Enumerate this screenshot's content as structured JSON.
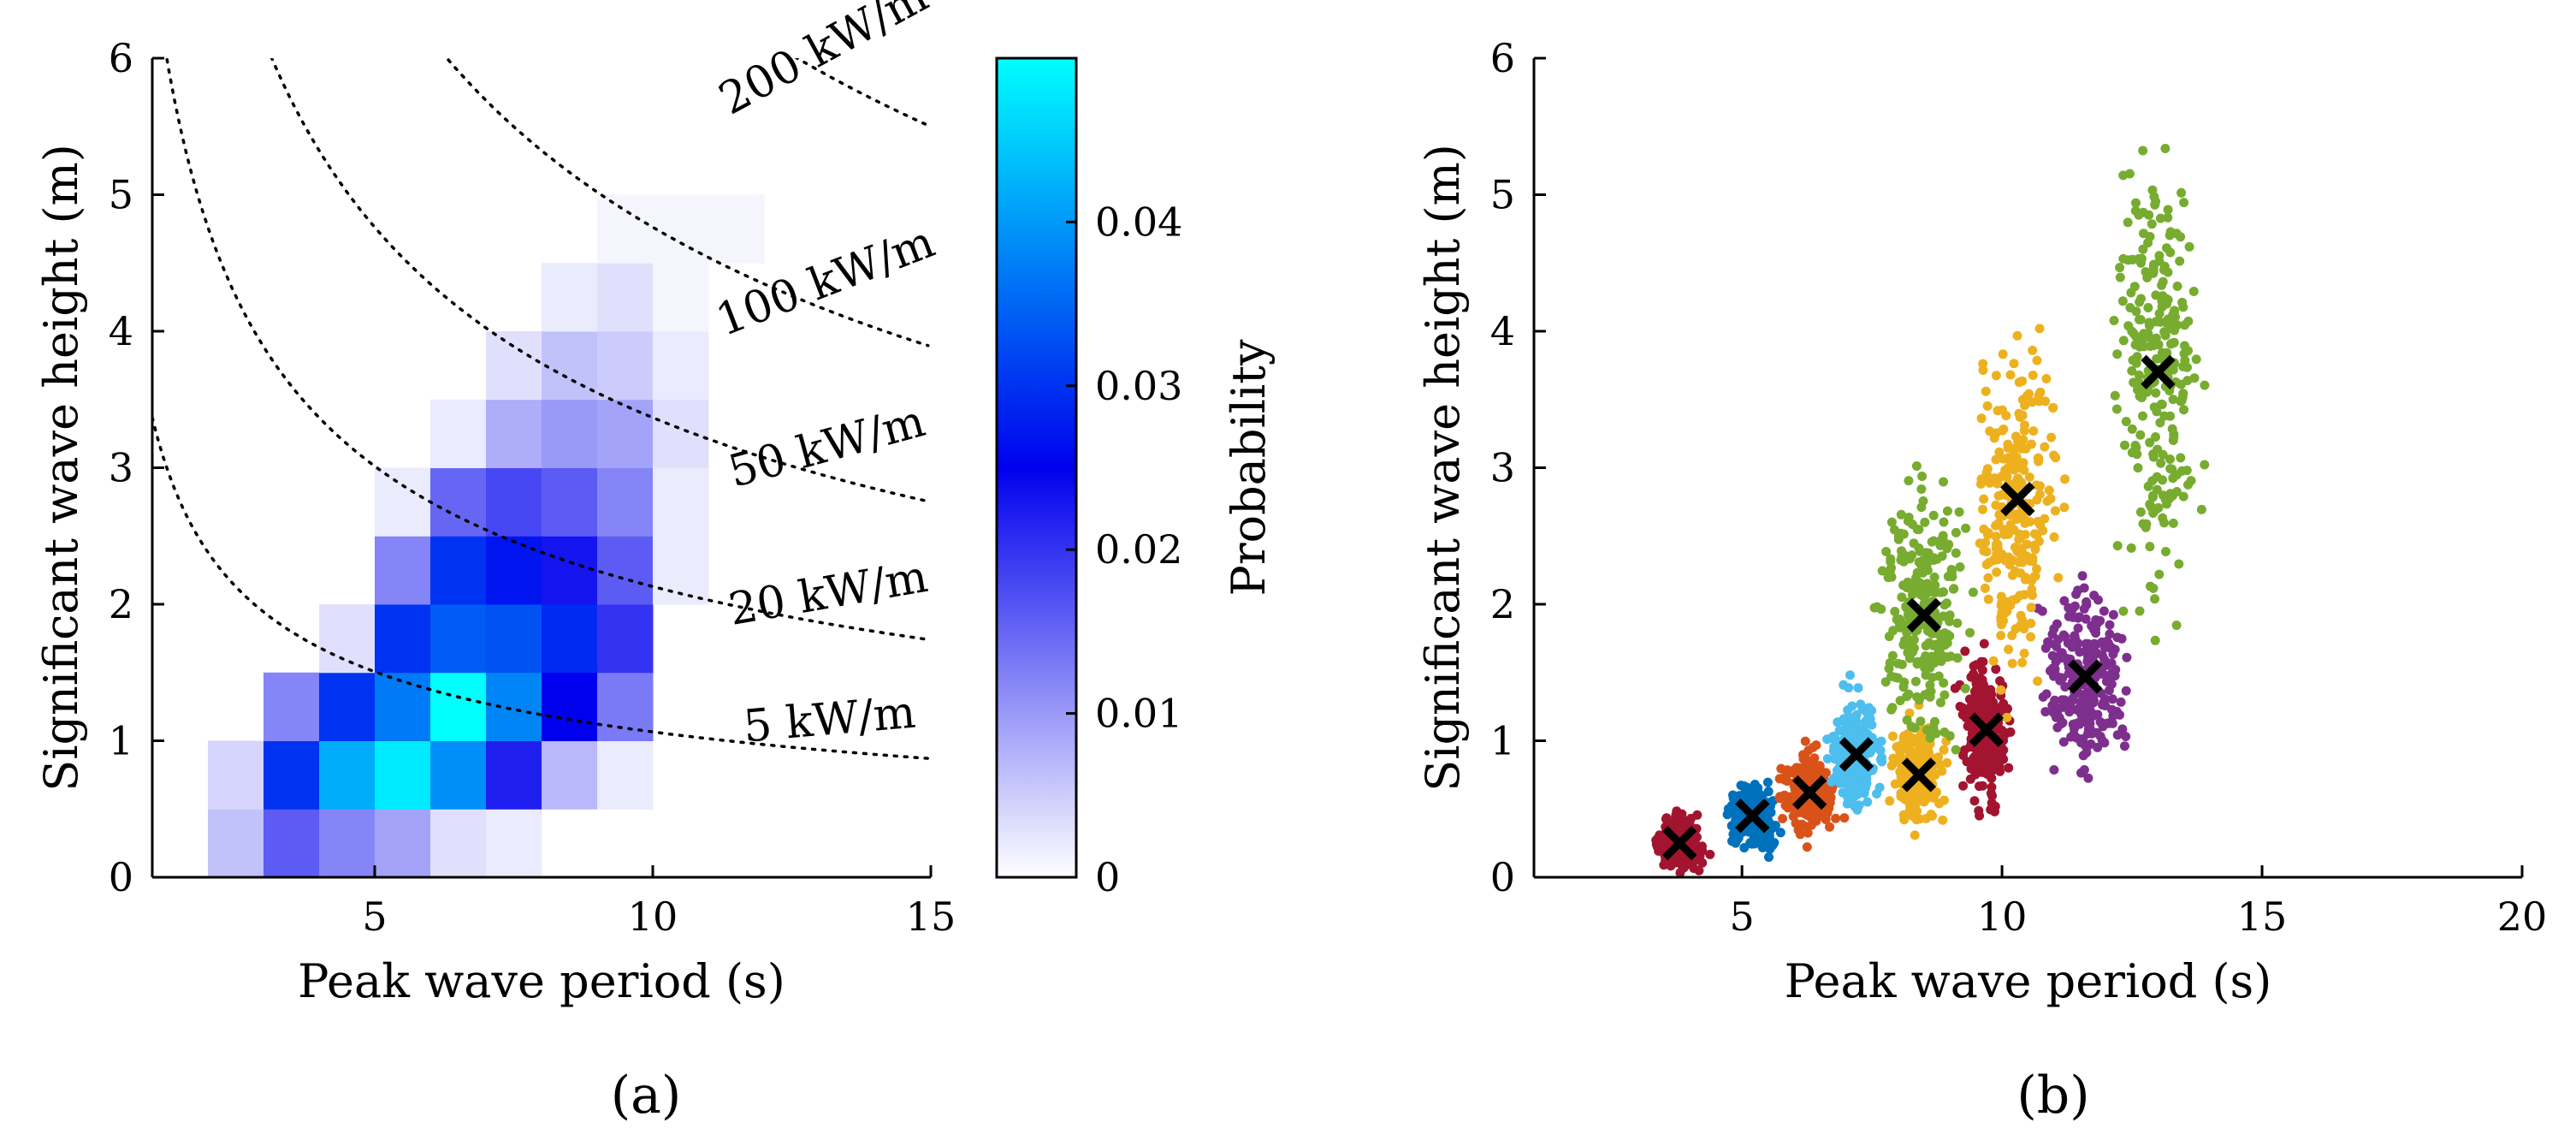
{
  "chart_data": [
    {
      "panel_label": "(a)",
      "type": "heatmap",
      "xlabel": "Peak wave period (s)",
      "ylabel": "Significant wave height (m)",
      "xlim": [
        1,
        15
      ],
      "ylim": [
        0,
        6
      ],
      "xticks": [
        "5",
        "10",
        "15"
      ],
      "yticks": [
        "0",
        "1",
        "2",
        "3",
        "4",
        "5",
        "6"
      ],
      "colorbar": {
        "label": "Probability",
        "range": [
          0,
          0.05
        ],
        "ticks": [
          "0",
          "0.01",
          "0.02",
          "0.03",
          "0.04"
        ],
        "colors": [
          "#ffffff",
          "#0000ee",
          "#00ffff"
        ]
      },
      "cell_width_s": 1,
      "cell_height_m": 0.5,
      "cells": [
        {
          "t": 2,
          "h": 0,
          "p": 0.006
        },
        {
          "t": 3,
          "h": 0,
          "p": 0.016
        },
        {
          "t": 4,
          "h": 0,
          "p": 0.012
        },
        {
          "t": 5,
          "h": 0,
          "p": 0.009
        },
        {
          "t": 6,
          "h": 0,
          "p": 0.003
        },
        {
          "t": 7,
          "h": 0,
          "p": 0.002
        },
        {
          "t": 2,
          "h": 0.5,
          "p": 0.004
        },
        {
          "t": 3,
          "h": 0.5,
          "p": 0.03
        },
        {
          "t": 4,
          "h": 0.5,
          "p": 0.042
        },
        {
          "t": 5,
          "h": 0.5,
          "p": 0.048
        },
        {
          "t": 6,
          "h": 0.5,
          "p": 0.039
        },
        {
          "t": 7,
          "h": 0.5,
          "p": 0.022
        },
        {
          "t": 8,
          "h": 0.5,
          "p": 0.007
        },
        {
          "t": 9,
          "h": 0.5,
          "p": 0.002
        },
        {
          "t": 3,
          "h": 1,
          "p": 0.012
        },
        {
          "t": 4,
          "h": 1,
          "p": 0.03
        },
        {
          "t": 5,
          "h": 1,
          "p": 0.037
        },
        {
          "t": 6,
          "h": 1,
          "p": 0.05
        },
        {
          "t": 7,
          "h": 1,
          "p": 0.038
        },
        {
          "t": 8,
          "h": 1,
          "p": 0.025
        },
        {
          "t": 9,
          "h": 1,
          "p": 0.013
        },
        {
          "t": 4,
          "h": 1.5,
          "p": 0.003
        },
        {
          "t": 5,
          "h": 1.5,
          "p": 0.03
        },
        {
          "t": 6,
          "h": 1.5,
          "p": 0.034
        },
        {
          "t": 7,
          "h": 1.5,
          "p": 0.033
        },
        {
          "t": 8,
          "h": 1.5,
          "p": 0.029
        },
        {
          "t": 9,
          "h": 1.5,
          "p": 0.02
        },
        {
          "t": 5,
          "h": 2,
          "p": 0.012
        },
        {
          "t": 6,
          "h": 2,
          "p": 0.03
        },
        {
          "t": 7,
          "h": 2,
          "p": 0.027
        },
        {
          "t": 8,
          "h": 2,
          "p": 0.023
        },
        {
          "t": 9,
          "h": 2,
          "p": 0.016
        },
        {
          "t": 10,
          "h": 2,
          "p": 0.002
        },
        {
          "t": 5,
          "h": 2.5,
          "p": 0.002
        },
        {
          "t": 6,
          "h": 2.5,
          "p": 0.015
        },
        {
          "t": 7,
          "h": 2.5,
          "p": 0.018
        },
        {
          "t": 8,
          "h": 2.5,
          "p": 0.016
        },
        {
          "t": 9,
          "h": 2.5,
          "p": 0.012
        },
        {
          "t": 10,
          "h": 2.5,
          "p": 0.002
        },
        {
          "t": 6,
          "h": 3,
          "p": 0.002
        },
        {
          "t": 7,
          "h": 3,
          "p": 0.008
        },
        {
          "t": 8,
          "h": 3,
          "p": 0.01
        },
        {
          "t": 9,
          "h": 3,
          "p": 0.009
        },
        {
          "t": 10,
          "h": 3,
          "p": 0.003
        },
        {
          "t": 7,
          "h": 3.5,
          "p": 0.003
        },
        {
          "t": 8,
          "h": 3.5,
          "p": 0.006
        },
        {
          "t": 9,
          "h": 3.5,
          "p": 0.005
        },
        {
          "t": 10,
          "h": 3.5,
          "p": 0.002
        },
        {
          "t": 8,
          "h": 4,
          "p": 0.002
        },
        {
          "t": 9,
          "h": 4,
          "p": 0.003
        },
        {
          "t": 10,
          "h": 4,
          "p": 0.001
        },
        {
          "t": 9,
          "h": 4.5,
          "p": 0.001
        },
        {
          "t": 10,
          "h": 4.5,
          "p": 0.001
        },
        {
          "t": 11,
          "h": 4.5,
          "p": 0.001
        }
      ],
      "contours": [
        {
          "label": "5 kW/m",
          "power": 5
        },
        {
          "label": "20 kW/m",
          "power": 20
        },
        {
          "label": "50 kW/m",
          "power": 50
        },
        {
          "label": "100 kW/m",
          "power": 100
        },
        {
          "label": "200 kW/m",
          "power": 200
        }
      ]
    },
    {
      "panel_label": "(b)",
      "type": "scatter",
      "xlabel": "Peak wave period (s)",
      "ylabel": "Significant wave height (m)",
      "xlim": [
        1,
        20
      ],
      "ylim": [
        0,
        6
      ],
      "xticks": [
        "5",
        "10",
        "15",
        "20"
      ],
      "yticks": [
        "0",
        "1",
        "2",
        "3",
        "4",
        "5",
        "6"
      ],
      "clusters": [
        {
          "color": "#a2142f",
          "centroid": [
            3.8,
            0.25
          ]
        },
        {
          "color": "#0072bd",
          "centroid": [
            5.2,
            0.45
          ]
        },
        {
          "color": "#d95319",
          "centroid": [
            6.3,
            0.62
          ]
        },
        {
          "color": "#4dbeee",
          "centroid": [
            7.2,
            0.9
          ]
        },
        {
          "color": "#edb120",
          "centroid": [
            8.4,
            0.75
          ]
        },
        {
          "color": "#a2142f",
          "centroid": [
            9.7,
            1.08
          ]
        },
        {
          "color": "#7e2f8e",
          "centroid": [
            11.6,
            1.47
          ]
        },
        {
          "color": "#77ac30",
          "centroid": [
            8.5,
            1.92
          ]
        },
        {
          "color": "#edb120",
          "centroid": [
            10.3,
            2.77
          ]
        },
        {
          "color": "#77ac30",
          "centroid": [
            13.0,
            3.7
          ]
        }
      ]
    }
  ]
}
